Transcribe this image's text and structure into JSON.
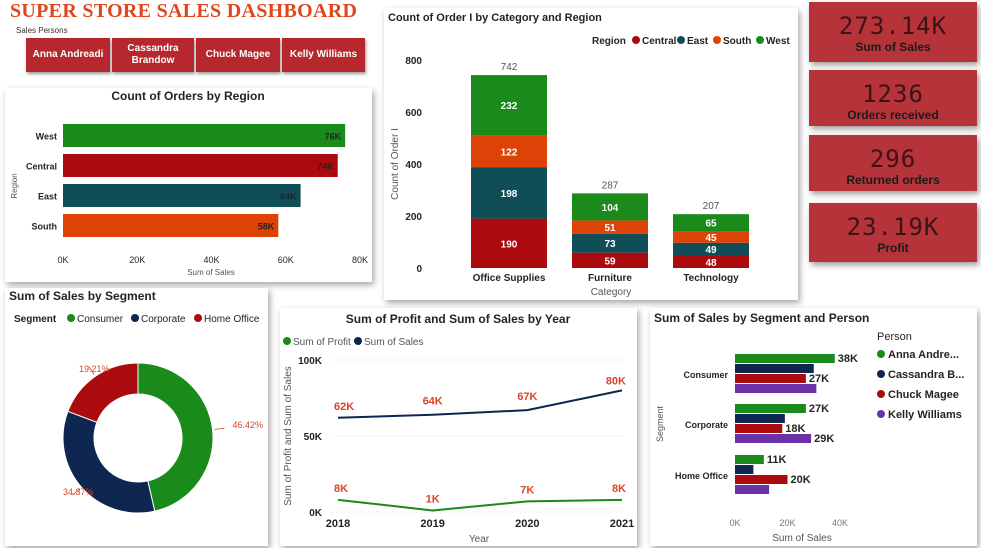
{
  "header": {
    "title": "SUPER STORE SALES DASHBOARD",
    "slicer_label": "Sales Persons",
    "persons": [
      "Anna Andreadi",
      "Cassandra Brandow",
      "Chuck Magee",
      "Kelly Williams"
    ]
  },
  "kpis": [
    {
      "value": "273.14K",
      "label": "Sum of Sales"
    },
    {
      "value": "1236",
      "label": "Orders received"
    },
    {
      "value": "296",
      "label": "Returned orders"
    },
    {
      "value": "23.19K",
      "label": "Profit"
    }
  ],
  "colors": {
    "central": "#ab0b0f",
    "east": "#0f4d57",
    "south": "#dd4307",
    "west": "#1a8a1b",
    "navy": "#0d2750",
    "purple": "#6b32a8",
    "kpi": "#b7333a",
    "label_red": "#d9452b"
  },
  "chart_data": [
    {
      "id": "region",
      "type": "bar",
      "orientation": "horizontal",
      "title": "Count of Orders by Region",
      "xlabel": "Sum of Sales",
      "ylabel": "Region",
      "categories": [
        "West",
        "Central",
        "East",
        "South"
      ],
      "values": [
        76000,
        74000,
        64000,
        58000
      ],
      "data_labels": [
        "76K",
        "74K",
        "64K",
        "58K"
      ],
      "xticks": [
        "0K",
        "20K",
        "40K",
        "60K",
        "80K"
      ],
      "xlim": [
        0,
        80000
      ]
    },
    {
      "id": "category_region",
      "type": "bar",
      "stacked": true,
      "title": "Count of Order I by Category and Region",
      "xlabel": "Category",
      "ylabel": "Count of Order I",
      "legend_title": "Region",
      "legend_position": "top-right",
      "categories": [
        "Office Supplies",
        "Furniture",
        "Technology"
      ],
      "series": [
        {
          "name": "Central",
          "values": [
            190,
            59,
            48
          ]
        },
        {
          "name": "East",
          "values": [
            198,
            73,
            49
          ]
        },
        {
          "name": "South",
          "values": [
            122,
            51,
            45
          ]
        },
        {
          "name": "West",
          "values": [
            232,
            104,
            65
          ]
        }
      ],
      "totals": [
        742,
        287,
        207
      ],
      "yticks": [
        "0",
        "200",
        "400",
        "600",
        "800"
      ],
      "ylim": [
        0,
        800
      ]
    },
    {
      "id": "segment",
      "type": "pie",
      "donut": true,
      "title": "Sum of Sales by Segment",
      "legend_title": "Segment",
      "legend_position": "top",
      "labels": [
        "Consumer",
        "Corporate",
        "Home Office"
      ],
      "values": [
        46.42,
        34.37,
        19.21
      ],
      "data_labels": [
        "46.42%",
        "34.37%",
        "19.21%"
      ]
    },
    {
      "id": "year",
      "type": "line",
      "title": "Sum of Profit and Sum of Sales by Year",
      "xlabel": "Year",
      "ylabel": "Sum of Profit and Sum of Sales",
      "legend_position": "top-left",
      "x": [
        "2018",
        "2019",
        "2020",
        "2021"
      ],
      "series": [
        {
          "name": "Sum of Profit",
          "values": [
            8000,
            1000,
            7000,
            8000
          ],
          "data_labels": [
            "8K",
            "1K",
            "7K",
            "8K"
          ]
        },
        {
          "name": "Sum of Sales",
          "values": [
            62000,
            64000,
            67000,
            80000
          ],
          "data_labels": [
            "62K",
            "64K",
            "67K",
            "80K"
          ]
        }
      ],
      "yticks": [
        "0K",
        "50K",
        "100K"
      ],
      "ylim": [
        0,
        100000
      ]
    },
    {
      "id": "segment_person",
      "type": "bar",
      "orientation": "horizontal",
      "title": "Sum of Sales by Segment and Person",
      "xlabel": "Sum of Sales",
      "ylabel": "Segment",
      "legend_title": "Person",
      "legend_position": "right",
      "categories": [
        "Consumer",
        "Corporate",
        "Home Office"
      ],
      "series": [
        {
          "name": "Anna Andre...",
          "values": [
            38000,
            27000,
            11000
          ]
        },
        {
          "name": "Cassandra B...",
          "values": [
            30000,
            19000,
            7000
          ]
        },
        {
          "name": "Chuck Magee",
          "values": [
            27000,
            18000,
            20000
          ]
        },
        {
          "name": "Kelly Williams",
          "values": [
            31000,
            29000,
            13000
          ]
        }
      ],
      "visible_labels": [
        {
          "category": 0,
          "series": 0,
          "text": "38K"
        },
        {
          "category": 0,
          "series": 2,
          "text": "27K"
        },
        {
          "category": 1,
          "series": 0,
          "text": "27K"
        },
        {
          "category": 1,
          "series": 2,
          "text": "18K"
        },
        {
          "category": 1,
          "series": 3,
          "text": "29K"
        },
        {
          "category": 2,
          "series": 0,
          "text": "11K"
        },
        {
          "category": 2,
          "series": 2,
          "text": "20K"
        }
      ],
      "xticks": [
        "0K",
        "20K",
        "40K"
      ],
      "xlim": [
        0,
        40000
      ]
    }
  ]
}
